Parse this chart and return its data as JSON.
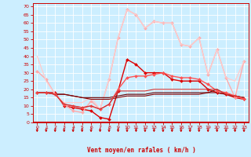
{
  "background_color": "#cceeff",
  "grid_color": "#ffffff",
  "xlabel": "Vent moyen/en rafales ( km/h )",
  "ylabel_ticks": [
    0,
    5,
    10,
    15,
    20,
    25,
    30,
    35,
    40,
    45,
    50,
    55,
    60,
    65,
    70
  ],
  "x_ticks": [
    0,
    1,
    2,
    3,
    4,
    5,
    6,
    7,
    8,
    9,
    10,
    11,
    12,
    13,
    14,
    15,
    16,
    17,
    18,
    19,
    20,
    21,
    22,
    23
  ],
  "xlim": [
    -0.5,
    23.5
  ],
  "ylim": [
    0,
    72
  ],
  "lines": [
    {
      "x": [
        0,
        1,
        2,
        3,
        4,
        5,
        6,
        7,
        8,
        9,
        10,
        11,
        12,
        13,
        14,
        15,
        16,
        17,
        18,
        19,
        20,
        21,
        22,
        23
      ],
      "y": [
        18,
        18,
        18,
        10,
        9,
        8,
        7,
        3,
        2,
        19,
        38,
        35,
        30,
        30,
        30,
        26,
        25,
        25,
        25,
        20,
        18,
        17,
        15,
        14
      ],
      "color": "#dd0000",
      "marker": "D",
      "markersize": 2.0,
      "linewidth": 1.0
    },
    {
      "x": [
        0,
        1,
        2,
        3,
        4,
        5,
        6,
        7,
        8,
        9,
        10,
        11,
        12,
        13,
        14,
        15,
        16,
        17,
        18,
        19,
        20,
        21,
        22,
        23
      ],
      "y": [
        31,
        26,
        17,
        11,
        7,
        6,
        13,
        8,
        26,
        51,
        68,
        65,
        57,
        61,
        60,
        60,
        47,
        46,
        51,
        29,
        44,
        27,
        15,
        37
      ],
      "color": "#ffaaaa",
      "marker": "D",
      "markersize": 2.0,
      "linewidth": 1.0
    },
    {
      "x": [
        0,
        1,
        2,
        3,
        4,
        5,
        6,
        7,
        8,
        9,
        10,
        11,
        12,
        13,
        14,
        15,
        16,
        17,
        18,
        19,
        20,
        21,
        22,
        23
      ],
      "y": [
        40,
        25,
        17,
        12,
        12,
        12,
        15,
        8,
        26,
        51,
        68,
        65,
        57,
        61,
        60,
        60,
        47,
        46,
        51,
        29,
        44,
        27,
        25,
        37
      ],
      "color": "#ffcccc",
      "marker": null,
      "markersize": 0,
      "linewidth": 0.9
    },
    {
      "x": [
        0,
        1,
        2,
        3,
        4,
        5,
        6,
        7,
        8,
        9,
        10,
        11,
        12,
        13,
        14,
        15,
        16,
        17,
        18,
        19,
        20,
        21,
        22,
        23
      ],
      "y": [
        18,
        18,
        17,
        17,
        16,
        15,
        15,
        15,
        15,
        16,
        17,
        17,
        17,
        18,
        18,
        18,
        18,
        18,
        18,
        18,
        20,
        17,
        16,
        15
      ],
      "color": "#660000",
      "marker": null,
      "markersize": 0,
      "linewidth": 0.8
    },
    {
      "x": [
        0,
        1,
        2,
        3,
        4,
        5,
        6,
        7,
        8,
        9,
        10,
        11,
        12,
        13,
        14,
        15,
        16,
        17,
        18,
        19,
        20,
        21,
        22,
        23
      ],
      "y": [
        18,
        18,
        17,
        17,
        16,
        15,
        14,
        14,
        14,
        15,
        16,
        16,
        16,
        17,
        17,
        17,
        17,
        17,
        17,
        18,
        18,
        17,
        16,
        15
      ],
      "color": "#880000",
      "marker": null,
      "markersize": 0,
      "linewidth": 0.8
    },
    {
      "x": [
        0,
        1,
        2,
        3,
        4,
        5,
        6,
        7,
        8,
        9,
        10,
        11,
        12,
        13,
        14,
        15,
        16,
        17,
        18,
        19,
        20,
        21,
        22,
        23
      ],
      "y": [
        18,
        18,
        17,
        11,
        10,
        9,
        10,
        8,
        11,
        20,
        27,
        28,
        28,
        29,
        30,
        28,
        27,
        27,
        26,
        23,
        19,
        18,
        16,
        14
      ],
      "color": "#ff5555",
      "marker": "D",
      "markersize": 2.0,
      "linewidth": 1.0
    },
    {
      "x": [
        0,
        1,
        2,
        3,
        4,
        5,
        6,
        7,
        8,
        9,
        10,
        11,
        12,
        13,
        14,
        15,
        16,
        17,
        18,
        19,
        20,
        21,
        22,
        23
      ],
      "y": [
        18,
        18,
        17,
        11,
        10,
        9,
        10,
        8,
        11,
        19,
        19,
        19,
        19,
        20,
        20,
        20,
        20,
        20,
        20,
        20,
        20,
        17,
        16,
        15
      ],
      "color": "#cc3333",
      "marker": null,
      "markersize": 0,
      "linewidth": 0.8
    }
  ],
  "xlabel_color": "#cc0000",
  "tick_color": "#cc0000",
  "spine_color": "#cc0000",
  "arrow_row_color": "#cc0000"
}
